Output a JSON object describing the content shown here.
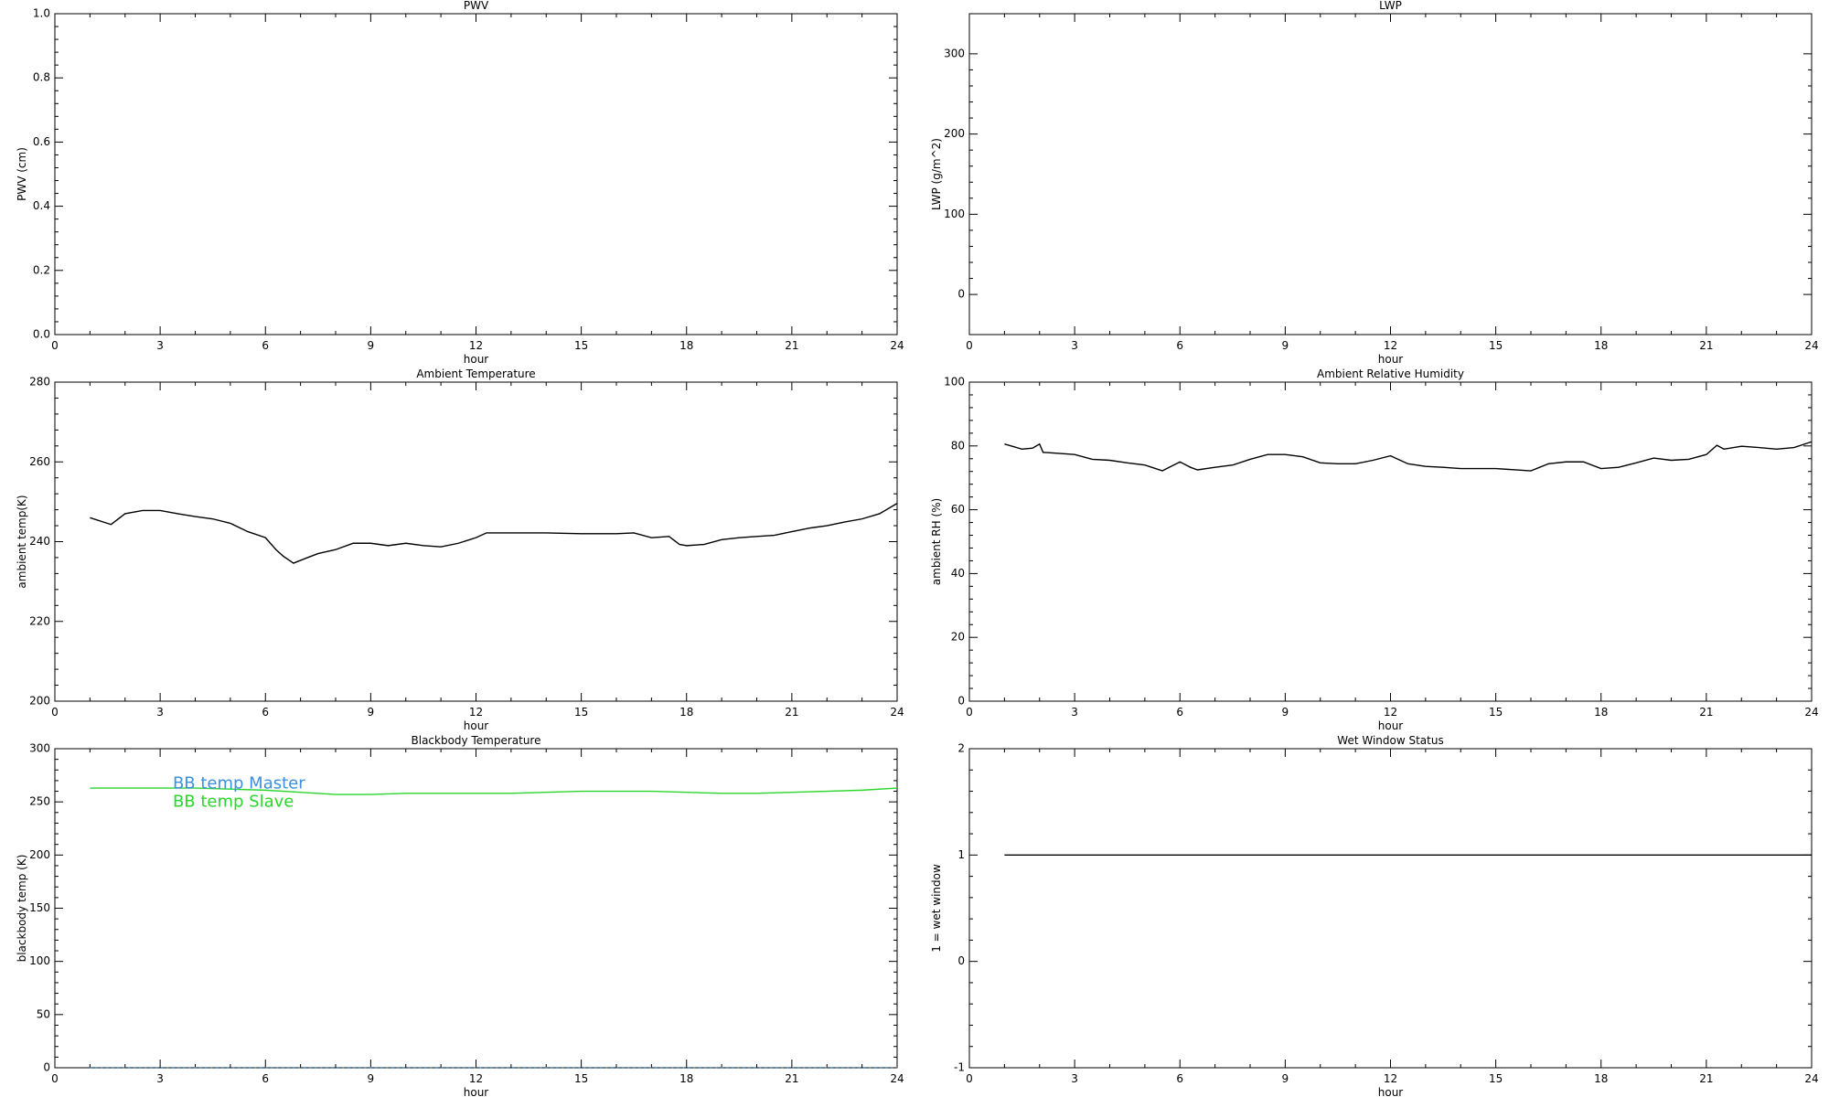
{
  "chart_data": [
    {
      "type": "line",
      "title": "PWV",
      "xlabel": "hour",
      "ylabel": "PWV (cm)",
      "xlim": [
        0,
        24
      ],
      "xticks": [
        0,
        3,
        6,
        9,
        12,
        15,
        18,
        21,
        24
      ],
      "ylim": [
        0,
        1
      ],
      "yticks": [
        {
          "value": 0,
          "label": "0.0"
        },
        0.2,
        0.4,
        0.6,
        0.8,
        {
          "value": 1,
          "label": "1.0"
        }
      ],
      "series": []
    },
    {
      "type": "line",
      "title": "LWP",
      "xlabel": "hour",
      "ylabel": "LWP (g/m^2)",
      "xlim": [
        0,
        24
      ],
      "xticks": [
        0,
        3,
        6,
        9,
        12,
        15,
        18,
        21,
        24
      ],
      "ylim": [
        -50,
        350
      ],
      "yticks": [
        0,
        100,
        200,
        300
      ],
      "series": []
    },
    {
      "type": "line",
      "title": "Ambient Temperature",
      "xlabel": "hour",
      "ylabel": "ambient temp(K)",
      "xlim": [
        0,
        24
      ],
      "xticks": [
        0,
        3,
        6,
        9,
        12,
        15,
        18,
        21,
        24
      ],
      "ylim": [
        200,
        280
      ],
      "yticks": [
        200,
        220,
        240,
        260,
        280
      ],
      "x": [
        1,
        1.6,
        2,
        2.5,
        3,
        3.5,
        4,
        4.5,
        5,
        5.5,
        6,
        6.3,
        6.5,
        6.8,
        7.2,
        7.5,
        8,
        8.5,
        9,
        9.5,
        10,
        10.5,
        11,
        11.5,
        12,
        12.3,
        13,
        14,
        15,
        16,
        16.5,
        17,
        17.5,
        17.8,
        18,
        18.5,
        19,
        19.5,
        20,
        20.5,
        21,
        21.5,
        22,
        22.5,
        23,
        23.5,
        24
      ],
      "series": [
        {
          "color": "#000000",
          "values": [
            246,
            244.3,
            247,
            247.8,
            247.8,
            247,
            246.3,
            245.7,
            244.6,
            242.5,
            241,
            238,
            236.4,
            234.6,
            236,
            237,
            238,
            239.6,
            239.6,
            239,
            239.6,
            239,
            238.7,
            239.6,
            241,
            242.2,
            242.2,
            242.2,
            242,
            242,
            242.2,
            241,
            241.3,
            239.3,
            239,
            239.3,
            240.5,
            241,
            241.3,
            241.6,
            242.5,
            243.4,
            244,
            244.9,
            245.7,
            247,
            249.6
          ]
        }
      ]
    },
    {
      "type": "line",
      "title": "Ambient Relative Humidity",
      "xlabel": "hour",
      "ylabel": "ambient RH (%)",
      "xlim": [
        0,
        24
      ],
      "xticks": [
        0,
        3,
        6,
        9,
        12,
        15,
        18,
        21,
        24
      ],
      "ylim": [
        0,
        100
      ],
      "yticks": [
        0,
        20,
        40,
        60,
        80,
        100
      ],
      "x": [
        1,
        1.5,
        1.8,
        2,
        2.1,
        2.5,
        3,
        3.5,
        4,
        4.5,
        5,
        5.5,
        6,
        6.3,
        6.5,
        7,
        7.5,
        8,
        8.5,
        9,
        9.5,
        10,
        10.5,
        11,
        11.5,
        12,
        12.5,
        13,
        13.5,
        14,
        15,
        16,
        16.5,
        17,
        17.5,
        18,
        18.5,
        19,
        19.5,
        20,
        20.5,
        21,
        21.3,
        21.5,
        22,
        22.5,
        23,
        23.5,
        24
      ],
      "series": [
        {
          "color": "#000000",
          "values": [
            80.6,
            79,
            79.3,
            80.6,
            78,
            77.7,
            77.3,
            75.8,
            75.5,
            74.7,
            74,
            72.2,
            75,
            73.3,
            72.5,
            73.3,
            74,
            75.8,
            77.3,
            77.3,
            76.6,
            74.7,
            74.4,
            74.4,
            75.5,
            76.9,
            74.4,
            73.6,
            73.3,
            72.9,
            72.9,
            72.2,
            74.4,
            75,
            75,
            72.9,
            73.3,
            74.7,
            76.2,
            75.5,
            75.8,
            77.3,
            80.2,
            79,
            79.9,
            79.5,
            79,
            79.5,
            81.3
          ]
        }
      ]
    },
    {
      "type": "line",
      "title": "Blackbody Temperature",
      "xlabel": "hour",
      "ylabel": "blackbody temp (K)",
      "xlim": [
        0,
        24
      ],
      "xticks": [
        0,
        3,
        6,
        9,
        12,
        15,
        18,
        21,
        24
      ],
      "ylim": [
        0,
        300
      ],
      "yticks": [
        0,
        50,
        100,
        150,
        200,
        250,
        300
      ],
      "legend": "top-left",
      "x": [
        1,
        2,
        3,
        4,
        5,
        6,
        7,
        8,
        9,
        10,
        11,
        12,
        13,
        14,
        15,
        16,
        17,
        18,
        19,
        20,
        21,
        22,
        23,
        24
      ],
      "series": [
        {
          "name": "BB temp Master",
          "color": "#3d8fe0",
          "linestyle": "dotted",
          "values": [
            0,
            0,
            0,
            0,
            0,
            0,
            0,
            0,
            0,
            0,
            0,
            0,
            0,
            0,
            0,
            0,
            0,
            0,
            0,
            0,
            0,
            0,
            0,
            0
          ]
        },
        {
          "name": "BB temp Slave",
          "color": "#2bd62b",
          "linestyle": "solid",
          "values": [
            263,
            263,
            263,
            263,
            262,
            261,
            259,
            257,
            257,
            258,
            258,
            258,
            258,
            259,
            260,
            260,
            260,
            259,
            258,
            258,
            259,
            260,
            261,
            263
          ]
        }
      ]
    },
    {
      "type": "line",
      "title": "Wet Window Status",
      "xlabel": "hour",
      "ylabel": "1 = wet window",
      "xlim": [
        0,
        24
      ],
      "xticks": [
        0,
        3,
        6,
        9,
        12,
        15,
        18,
        21,
        24
      ],
      "ylim": [
        -1,
        2
      ],
      "yticks": [
        -1,
        0,
        1,
        2
      ],
      "x": [
        1,
        24
      ],
      "series": [
        {
          "color": "#000000",
          "values": [
            1,
            1
          ]
        }
      ]
    }
  ]
}
